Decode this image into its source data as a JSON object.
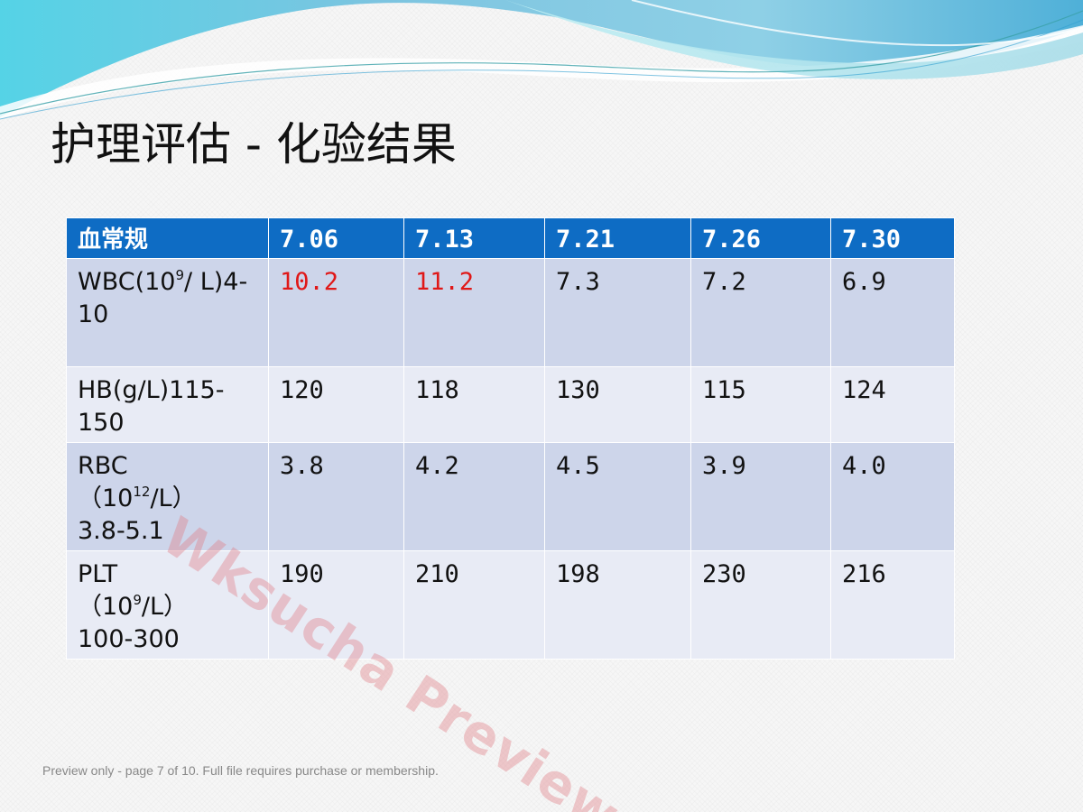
{
  "slide": {
    "title": "护理评估 - 化验结果",
    "watermark": "Wksucha Preview",
    "footer": "Preview only - page 7 of 10. Full file requires purchase or membership."
  },
  "colors": {
    "header_bg": "#0e6cc4",
    "row_odd_bg": "#cdd5ea",
    "row_even_bg": "#e8ebf5",
    "abnormal_text": "#e01818"
  },
  "table": {
    "headers": [
      "血常规",
      "7.06",
      "7.13",
      "7.21",
      "7.26",
      "7.30"
    ],
    "rows": [
      {
        "label_main": "WBC(10",
        "label_sup": "9",
        "label_tail": "/ L)4-10",
        "values": [
          "10.2",
          "11.2",
          "7.3",
          "7.2",
          "6.9"
        ],
        "abnormal": [
          true,
          true,
          false,
          false,
          false
        ]
      },
      {
        "label_main": "HB(g/L)115-150",
        "values": [
          "120",
          "118",
          "130",
          "115",
          "124"
        ]
      },
      {
        "label_main": "RBC",
        "label_line2_pre": "（10",
        "label_sup": "12",
        "label_line2_post": "/L）",
        "label_line3": "3.8-5.1",
        "values": [
          "3.8",
          "4.2",
          "4.5",
          "3.9",
          "4.0"
        ]
      },
      {
        "label_main": "PLT",
        "label_line2_pre": "（10",
        "label_sup": "9",
        "label_line2_post": "/L）",
        "label_line3": "100-300",
        "values": [
          "190",
          "210",
          "198",
          "230",
          "216"
        ]
      }
    ]
  }
}
